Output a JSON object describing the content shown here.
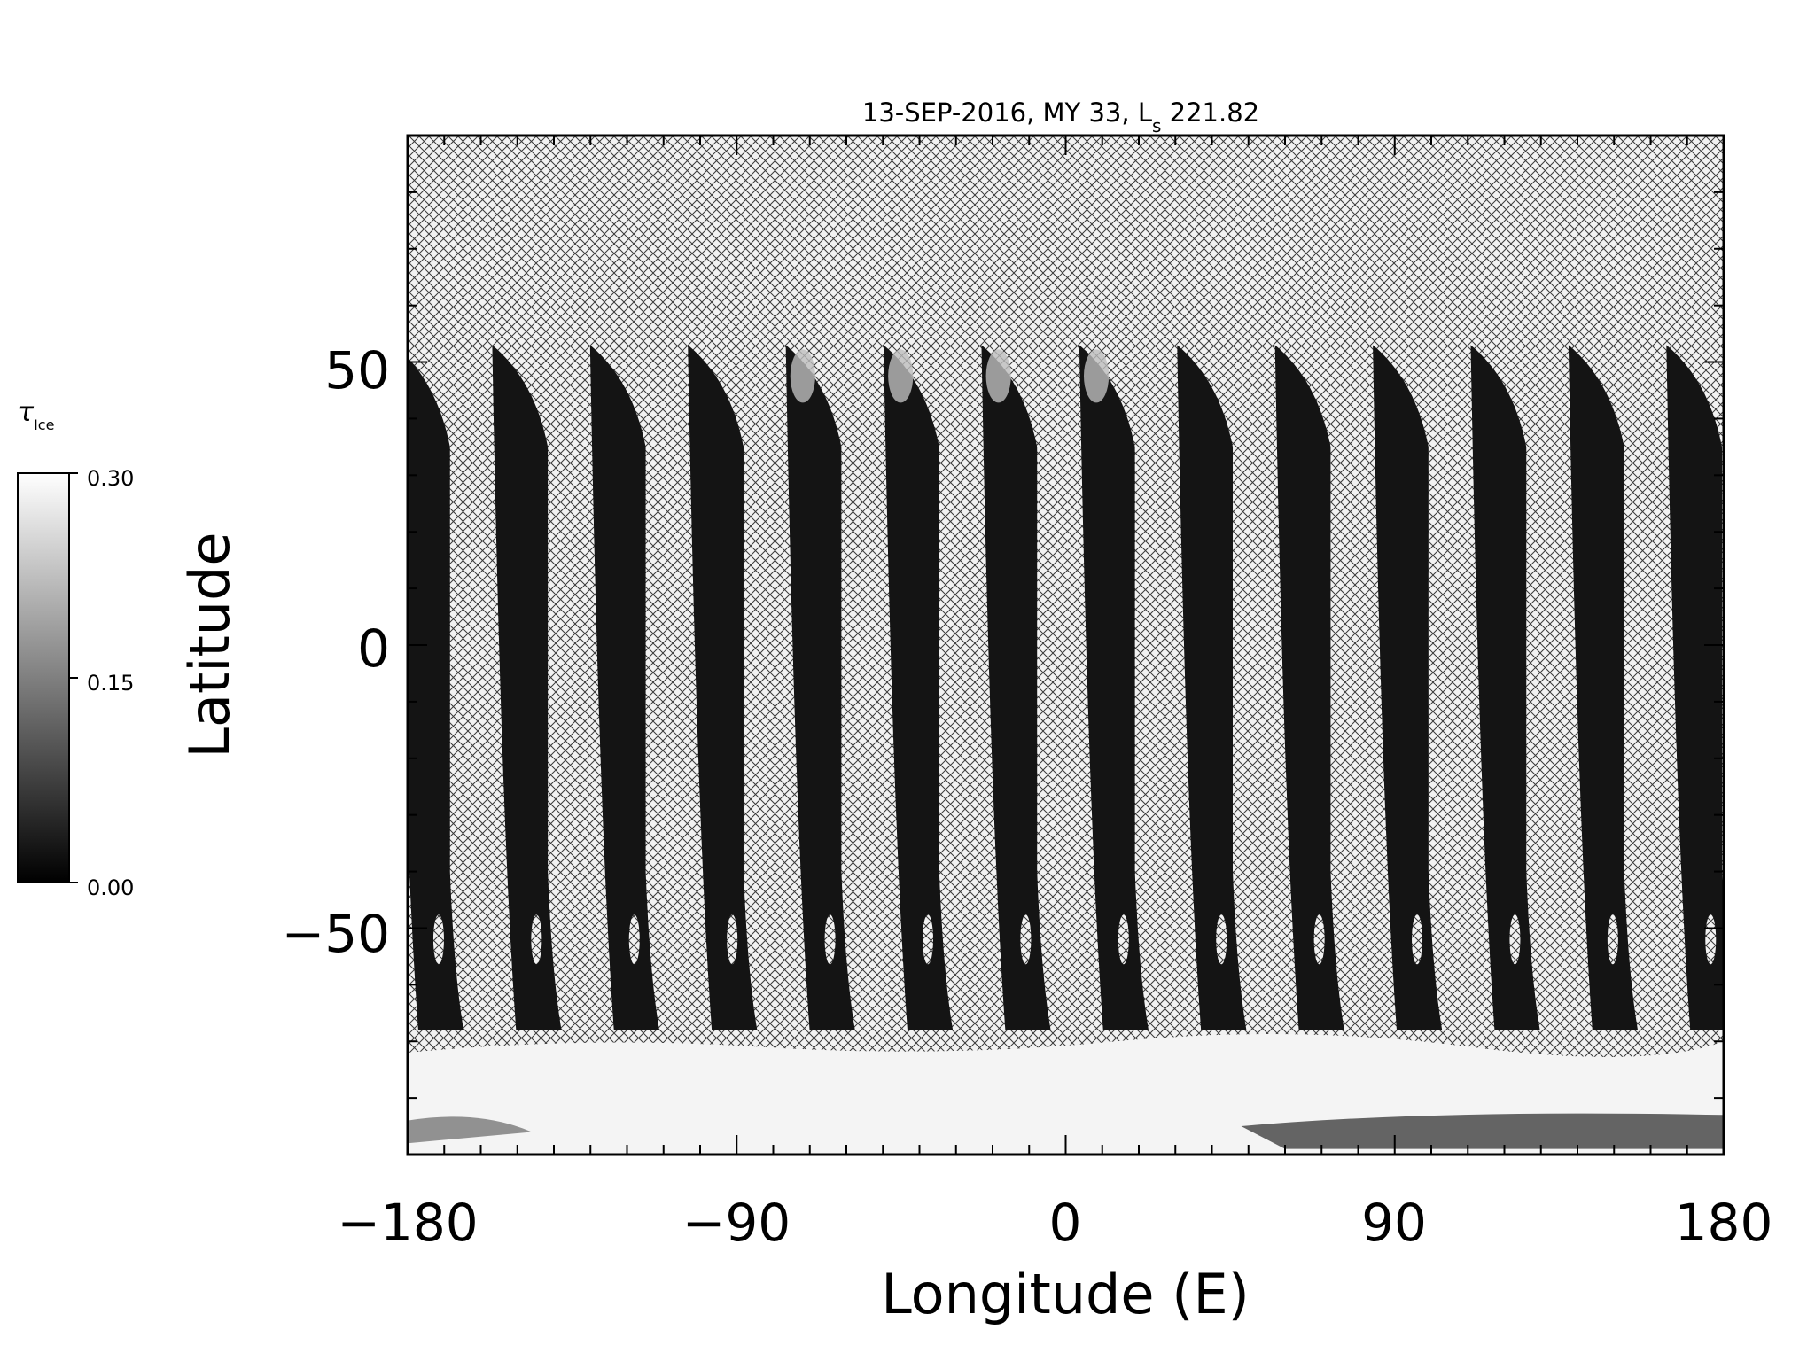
{
  "title": {
    "prefix": "13-SEP-2016, MY 33,  L",
    "subscript": "s",
    "suffix": " 221.82"
  },
  "axes": {
    "xlabel": "Longitude (E)",
    "ylabel": "Latitude",
    "xticks": [
      -180,
      -90,
      0,
      90,
      180
    ],
    "xtick_labels": [
      "−180",
      "−90",
      "0",
      "90",
      "180"
    ],
    "yticks": [
      50,
      0,
      -50
    ],
    "ytick_labels": [
      "50",
      "0",
      "−50"
    ],
    "xrange": [
      -180,
      180
    ],
    "yrange": [
      -90,
      90
    ]
  },
  "colorbar": {
    "label_symbol": "τ",
    "label_subscript": "Ice",
    "min": 0.0,
    "max": 0.3,
    "ticks": [
      0.0,
      0.15,
      0.3
    ],
    "tick_labels": [
      "0.00",
      "0.15",
      "0.30"
    ],
    "colors": [
      "#000000",
      "#ffffff"
    ]
  },
  "map_data": {
    "description_type": "grayscale orbit-swath map of water-ice optical depth",
    "swath_count": 14,
    "missing_data_fill": "crosshatch",
    "colors": {
      "swath": "#141414",
      "ice_cap": "#f4f4f4",
      "hatch": "#555555"
    }
  }
}
